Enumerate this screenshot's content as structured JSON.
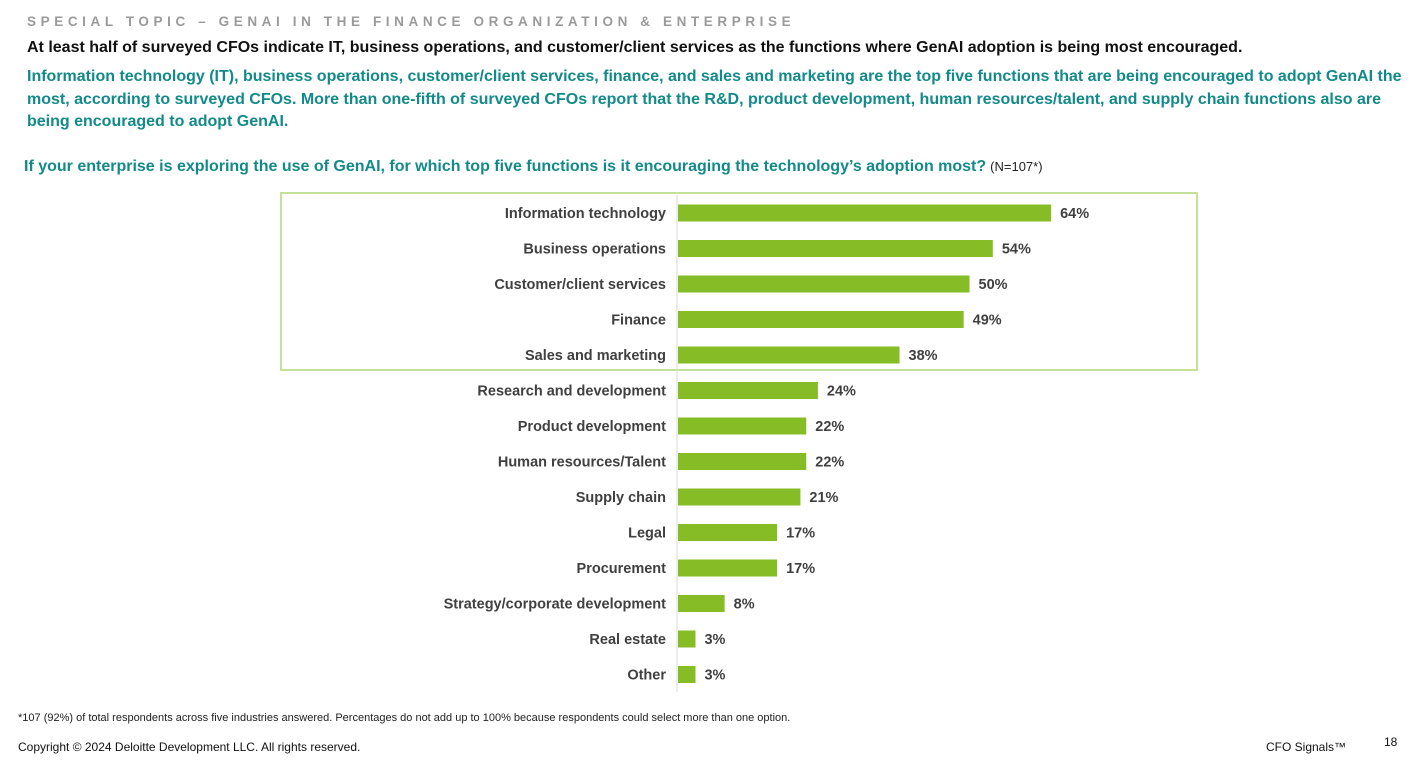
{
  "header": {
    "eyebrow": "SPECIAL TOPIC – GENAI IN THE FINANCE ORGANIZATION & ENTERPRISE",
    "headline": "At least half of surveyed CFOs indicate IT, business operations, and customer/client services as the functions where GenAI adoption is being most encouraged.",
    "subhead": "Information technology (IT), business operations, customer/client services, finance, and sales and marketing are the top five functions that are being encouraged to adopt GenAI the most, according to surveyed CFOs. More than one-fifth of surveyed CFOs report that the R&D, product development, human resources/talent, and supply chain functions also are being encouraged to adopt GenAI."
  },
  "question": {
    "text": "If your enterprise is exploring the use of GenAI, for which top five functions is it encouraging the technology’s adoption most?",
    "sample": "(N=107*)"
  },
  "chart_data": {
    "type": "bar",
    "orientation": "horizontal",
    "categories": [
      "Information technology",
      "Business operations",
      "Customer/client services",
      "Finance",
      "Sales and marketing",
      "Research and development",
      "Product development",
      "Human resources/Talent",
      "Supply chain",
      "Legal",
      "Procurement",
      "Strategy/corporate development",
      "Real estate",
      "Other"
    ],
    "values": [
      64,
      54,
      50,
      49,
      38,
      24,
      22,
      22,
      21,
      17,
      17,
      8,
      3,
      3
    ],
    "data_labels": [
      "64%",
      "54%",
      "50%",
      "49%",
      "38%",
      "24%",
      "22%",
      "22%",
      "21%",
      "17%",
      "17%",
      "8%",
      "3%",
      "3%"
    ],
    "unit": "%",
    "xlim": [
      0,
      70
    ],
    "grid": false,
    "legend": "none",
    "highlighted_top": 5,
    "bar_color": "#86bc25",
    "highlight_border_color": "#c4e19a"
  },
  "footer": {
    "footnote": "*107 (92%) of total respondents across five industries answered. Percentages do not add up to 100% because respondents could select more than one option.",
    "copyright": "Copyright © 2024 Deloitte Development LLC. All rights reserved.",
    "brand": "CFO Signals™",
    "page_number": "18"
  }
}
